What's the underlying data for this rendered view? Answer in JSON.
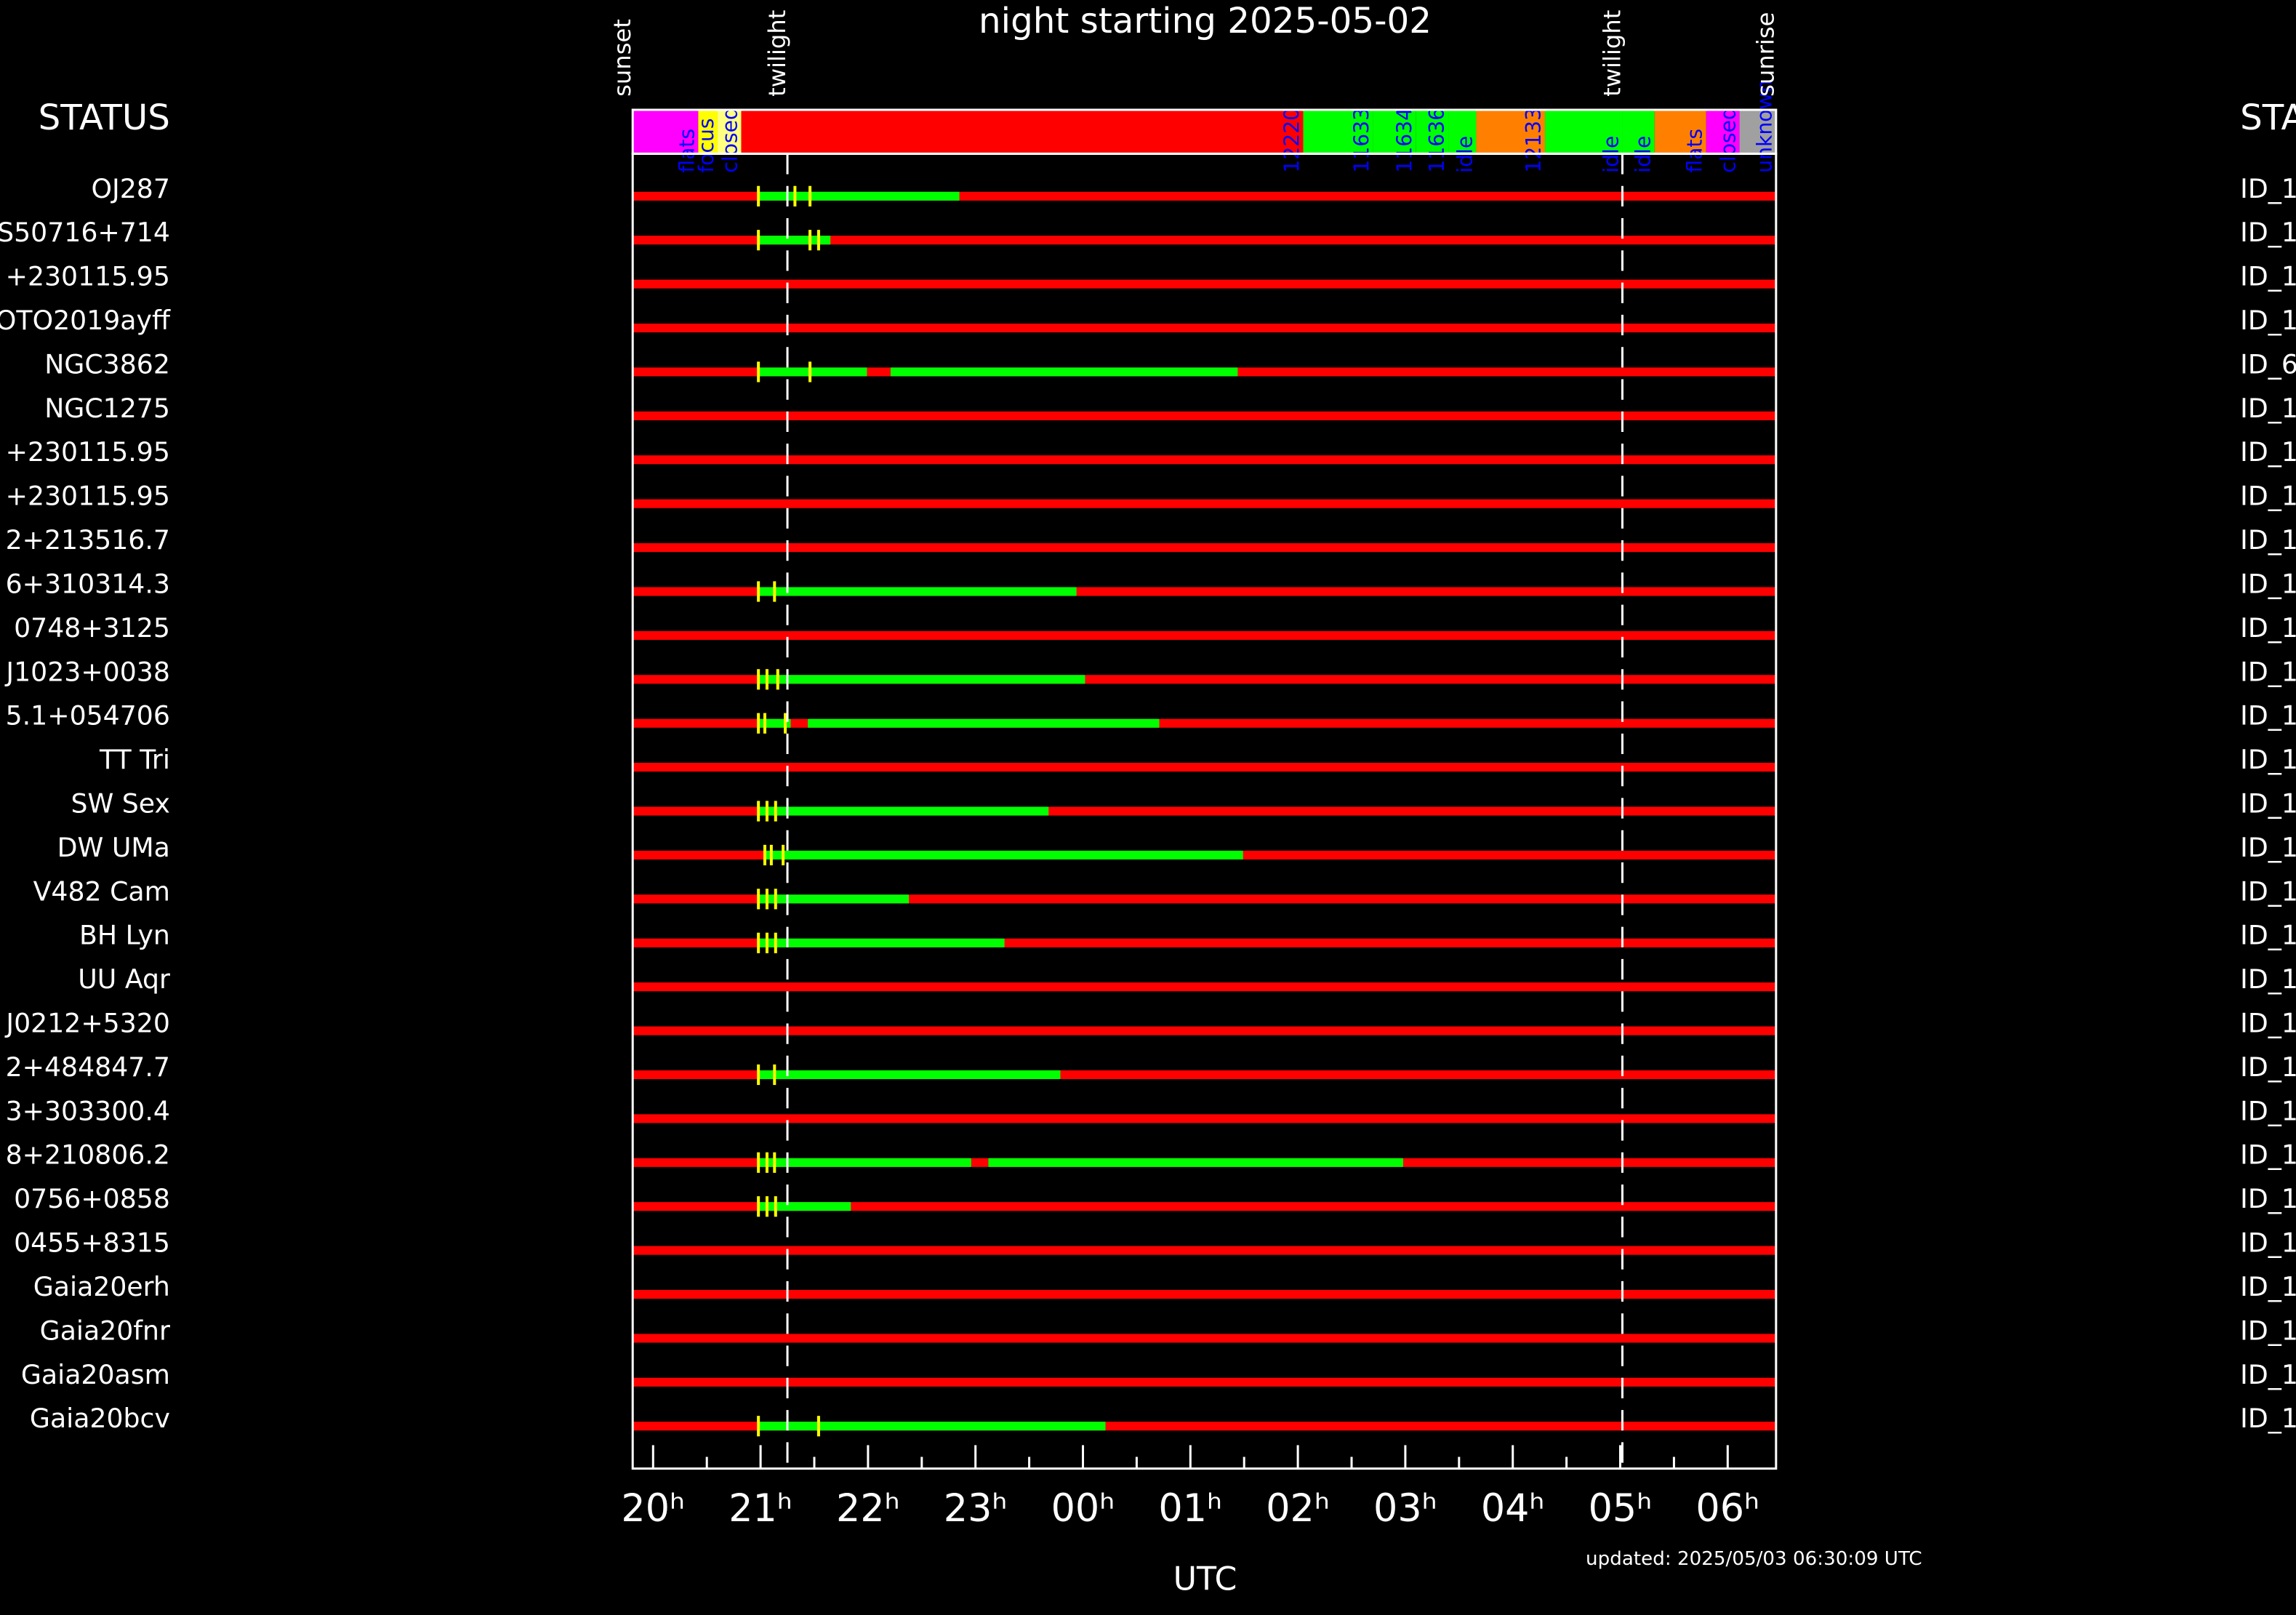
{
  "chart_data": {
    "type": "schedule",
    "title": "night starting 2025-05-02",
    "status_label": "STATUS",
    "right_label": "STATUS",
    "xlabel": "UTC",
    "updated": "updated: 2025/05/03 06:30:09 UTC",
    "xlim": [
      19.81,
      30.45
    ],
    "xticks": [
      {
        "value": 20,
        "label": "20ʰ"
      },
      {
        "value": 21,
        "label": "21ʰ"
      },
      {
        "value": 22,
        "label": "22ʰ"
      },
      {
        "value": 23,
        "label": "23ʰ"
      },
      {
        "value": 24,
        "label": "00ʰ"
      },
      {
        "value": 25,
        "label": "01ʰ"
      },
      {
        "value": 26,
        "label": "02ʰ"
      },
      {
        "value": 27,
        "label": "03ʰ"
      },
      {
        "value": 28,
        "label": "04ʰ"
      },
      {
        "value": 29,
        "label": "05ʰ"
      },
      {
        "value": 30,
        "label": "06ʰ"
      }
    ],
    "xminorticks": [
      20.5,
      21.5,
      22.5,
      23.5,
      24.5,
      25.5,
      26.5,
      27.5,
      28.5,
      29.5
    ],
    "bar_color": "#ff0000",
    "obs_color": "#00ff00",
    "tick_color": "#ffff00",
    "label_color": "#0000ff",
    "sky_events": [
      {
        "label": "sunset",
        "time": 19.81,
        "dashed": false
      },
      {
        "label": "twilight",
        "time": 21.25,
        "dashed": true
      },
      {
        "label": "twilight",
        "time": 29.02,
        "dashed": true
      },
      {
        "label": "sunrise",
        "time": 30.45,
        "dashed": false
      }
    ],
    "status": [
      {
        "start": 19.81,
        "end": 20.42,
        "color": "#ff00ff",
        "label": "flats"
      },
      {
        "start": 20.42,
        "end": 20.6,
        "color": "#ffff00",
        "label": "focus"
      },
      {
        "start": 20.6,
        "end": 20.82,
        "color": "#ffff80",
        "label": "closed"
      },
      {
        "start": 20.82,
        "end": 26.05,
        "color": "#ff0000",
        "label": "12220"
      },
      {
        "start": 26.05,
        "end": 26.7,
        "color": "#00ff00",
        "label": "11633"
      },
      {
        "start": 26.7,
        "end": 27.1,
        "color": "#00ff00",
        "label": "11634"
      },
      {
        "start": 27.1,
        "end": 27.4,
        "color": "#00ff00",
        "label": "11636"
      },
      {
        "start": 27.4,
        "end": 27.66,
        "color": "#00ff00",
        "label": "idle"
      },
      {
        "start": 27.66,
        "end": 28.3,
        "color": "#ff8000",
        "label": "12133"
      },
      {
        "start": 28.3,
        "end": 29.02,
        "color": "#00ff00",
        "label": "idle"
      },
      {
        "start": 29.02,
        "end": 29.32,
        "color": "#00ff00",
        "label": "idle"
      },
      {
        "start": 29.32,
        "end": 29.8,
        "color": "#ff8000",
        "label": "flats"
      },
      {
        "start": 29.8,
        "end": 30.11,
        "color": "#ff00ff",
        "label": "closed"
      },
      {
        "start": 30.11,
        "end": 30.45,
        "color": "#a0a0a0",
        "label": "unknown"
      }
    ],
    "rows": [
      {
        "name": "OJ287",
        "id": "ID_1",
        "green": [
          [
            20.98,
            22.85
          ]
        ],
        "ticks": [
          20.98,
          21.32,
          21.46
        ]
      },
      {
        "name": "S50716+714",
        "id": "ID_1",
        "green": [
          [
            20.98,
            21.65
          ]
        ],
        "ticks": [
          20.98,
          21.46,
          21.54
        ]
      },
      {
        "name": "+230115.95",
        "id": "ID_1",
        "green": [],
        "ticks": []
      },
      {
        "name": "OTO2019ayff",
        "id": "ID_1",
        "green": [],
        "ticks": []
      },
      {
        "name": "NGC3862",
        "id": "ID_6",
        "green": [
          [
            20.98,
            21.99
          ],
          [
            22.21,
            25.44
          ]
        ],
        "ticks": [
          20.98,
          21.46
        ]
      },
      {
        "name": "NGC1275",
        "id": "ID_1",
        "green": [],
        "ticks": []
      },
      {
        "name": "+230115.95",
        "id": "ID_1",
        "green": [],
        "ticks": []
      },
      {
        "name": "+230115.95",
        "id": "ID_1",
        "green": [],
        "ticks": []
      },
      {
        "name": "2+213516.7",
        "id": "ID_1",
        "green": [],
        "ticks": []
      },
      {
        "name": "6+310314.3",
        "id": "ID_1",
        "green": [
          [
            20.98,
            23.94
          ]
        ],
        "ticks": [
          20.98,
          21.13
        ]
      },
      {
        "name": "0748+3125",
        "id": "ID_1",
        "green": [],
        "ticks": []
      },
      {
        "name": "J1023+0038",
        "id": "ID_1",
        "green": [
          [
            20.98,
            24.02
          ]
        ],
        "ticks": [
          20.98,
          21.06,
          21.16
        ]
      },
      {
        "name": "5.1+054706",
        "id": "ID_1",
        "green": [
          [
            20.98,
            21.28
          ],
          [
            21.44,
            24.71
          ]
        ],
        "ticks": [
          20.98,
          21.04,
          21.23
        ]
      },
      {
        "name": "TT Tri",
        "id": "ID_1",
        "green": [],
        "ticks": []
      },
      {
        "name": "SW Sex",
        "id": "ID_1",
        "green": [
          [
            20.98,
            23.68
          ]
        ],
        "ticks": [
          20.98,
          21.06,
          21.14
        ]
      },
      {
        "name": "DW UMa",
        "id": "ID_1",
        "green": [
          [
            21.04,
            25.49
          ]
        ],
        "ticks": [
          21.04,
          21.1,
          21.21
        ]
      },
      {
        "name": "V482 Cam",
        "id": "ID_1",
        "green": [
          [
            20.98,
            22.38
          ]
        ],
        "ticks": [
          20.98,
          21.06,
          21.14
        ]
      },
      {
        "name": "BH Lyn",
        "id": "ID_1",
        "green": [
          [
            20.98,
            23.27
          ]
        ],
        "ticks": [
          20.98,
          21.06,
          21.14
        ]
      },
      {
        "name": "UU Aqr",
        "id": "ID_1",
        "green": [],
        "ticks": []
      },
      {
        "name": "J0212+5320",
        "id": "ID_1",
        "green": [],
        "ticks": []
      },
      {
        "name": "2+484847.7",
        "id": "ID_1",
        "green": [
          [
            20.98,
            23.79
          ]
        ],
        "ticks": [
          20.98,
          21.13
        ]
      },
      {
        "name": "3+303300.4",
        "id": "ID_1",
        "green": [],
        "ticks": []
      },
      {
        "name": "8+210806.2",
        "id": "ID_1",
        "green": [
          [
            20.98,
            22.96
          ],
          [
            23.12,
            26.98
          ]
        ],
        "ticks": [
          20.98,
          21.06,
          21.13
        ]
      },
      {
        "name": "0756+0858",
        "id": "ID_1",
        "green": [
          [
            20.98,
            21.84
          ]
        ],
        "ticks": [
          20.98,
          21.06,
          21.14
        ]
      },
      {
        "name": "0455+8315",
        "id": "ID_1",
        "green": [],
        "ticks": []
      },
      {
        "name": "Gaia20erh",
        "id": "ID_1",
        "green": [],
        "ticks": []
      },
      {
        "name": "Gaia20fnr",
        "id": "ID_1",
        "green": [],
        "ticks": []
      },
      {
        "name": "Gaia20asm",
        "id": "ID_1",
        "green": [],
        "ticks": []
      },
      {
        "name": "Gaia20bcv",
        "id": "ID_1",
        "green": [
          [
            20.98,
            24.21
          ]
        ],
        "ticks": [
          20.98,
          21.54
        ]
      }
    ]
  }
}
